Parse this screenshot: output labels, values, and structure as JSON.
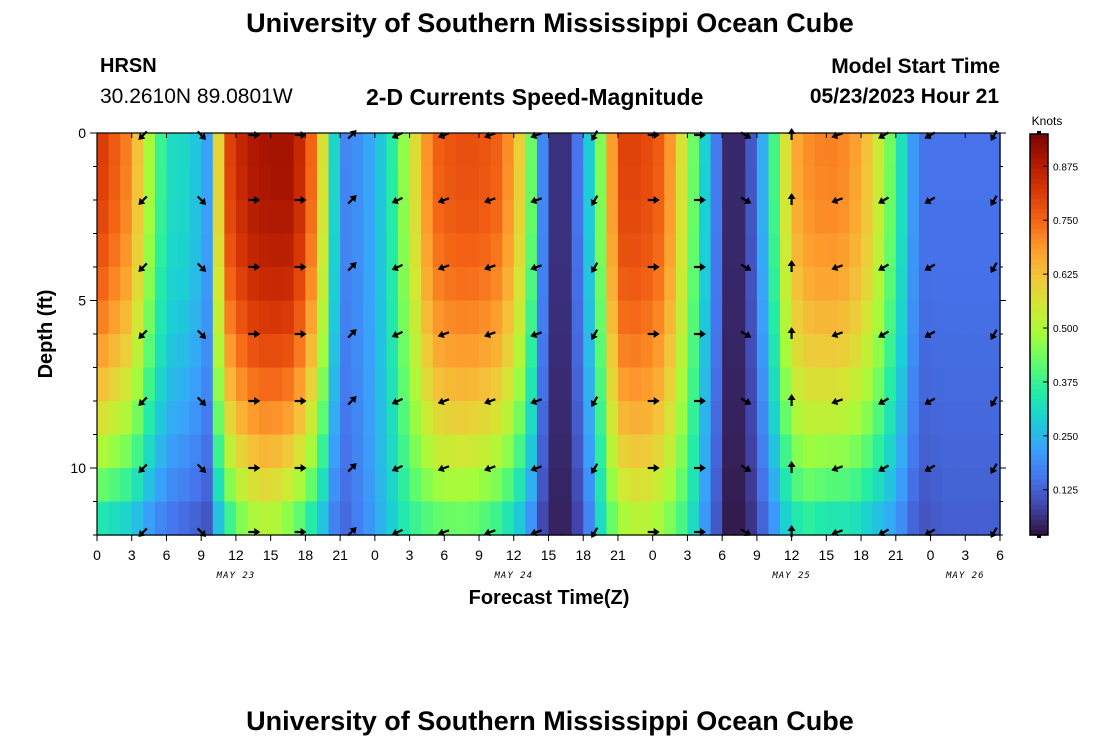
{
  "header": {
    "title": "University of Southern Mississippi Ocean Cube",
    "station_name": "HRSN",
    "station_coords": "30.2610N  89.0801W",
    "chart_title": "2-D Currents Speed-Magnitude",
    "model_start_label": "Model Start Time",
    "model_start_value": "05/23/2023 Hour 21"
  },
  "footer": {
    "title": "University of Southern Mississippi Ocean Cube"
  },
  "chart_data": {
    "type": "heatmap",
    "title": "2-D Currents Speed-Magnitude",
    "xlabel": "Forecast Time(Z)",
    "ylabel": "Depth (ft)",
    "x_range_hours": [
      0,
      78
    ],
    "ylim": [
      0,
      12
    ],
    "x_tick_labels": [
      "0",
      "3",
      "6",
      "9",
      "12",
      "15",
      "18",
      "21",
      "0",
      "3",
      "6",
      "9",
      "12",
      "15",
      "18",
      "21",
      "0",
      "3",
      "6",
      "9",
      "12",
      "15",
      "18",
      "21",
      "0",
      "3",
      "6"
    ],
    "y_tick_labels": [
      "0",
      "5",
      "10"
    ],
    "y_tick_values": [
      0,
      5,
      10
    ],
    "day_labels": [
      {
        "label": "MAY 23",
        "hour": 12
      },
      {
        "label": "MAY 24",
        "hour": 36
      },
      {
        "label": "MAY 25",
        "hour": 60
      },
      {
        "label": "MAY 26",
        "hour": 75
      }
    ],
    "colorbar": {
      "unit": "Knots",
      "min": 0.02,
      "max": 0.95,
      "tick_values": [
        0.125,
        0.25,
        0.375,
        0.5,
        0.625,
        0.75,
        0.875
      ],
      "tick_labels": [
        "0.125",
        "0.250",
        "0.375",
        "0.500",
        "0.625",
        "0.750",
        "0.875"
      ],
      "colors": [
        "#30123b",
        "#4145ab",
        "#4675ed",
        "#39a2fc",
        "#1bcfd4",
        "#24eca6",
        "#61fc6c",
        "#a4fc3b",
        "#d1e834",
        "#f3c63a",
        "#fe9b2d",
        "#f36315",
        "#d93806",
        "#b11901",
        "#7a0402"
      ]
    },
    "speed_profiles": {
      "time_hours": [
        0,
        3,
        4,
        6,
        8,
        9.5,
        11,
        13,
        15,
        17,
        19,
        21,
        23,
        25,
        27,
        29,
        31,
        33,
        35,
        37,
        39,
        40.5,
        42,
        43.5,
        45,
        47,
        49,
        51,
        53,
        54.5,
        56,
        58,
        60,
        61.5,
        63,
        65,
        67,
        69,
        71,
        73,
        75,
        77,
        78
      ],
      "surface_knots": [
        0.83,
        0.7,
        0.55,
        0.32,
        0.3,
        0.22,
        0.78,
        0.88,
        0.9,
        0.9,
        0.7,
        0.17,
        0.2,
        0.3,
        0.52,
        0.75,
        0.78,
        0.78,
        0.75,
        0.55,
        0.06,
        0.06,
        0.2,
        0.45,
        0.8,
        0.8,
        0.75,
        0.5,
        0.22,
        0.05,
        0.05,
        0.3,
        0.65,
        0.7,
        0.72,
        0.7,
        0.6,
        0.38,
        0.15,
        0.15,
        0.15,
        0.15,
        0.15
      ],
      "bottom_knots": [
        0.3,
        0.25,
        0.2,
        0.15,
        0.12,
        0.1,
        0.3,
        0.45,
        0.48,
        0.4,
        0.28,
        0.12,
        0.18,
        0.26,
        0.35,
        0.38,
        0.4,
        0.38,
        0.33,
        0.22,
        0.04,
        0.04,
        0.1,
        0.3,
        0.45,
        0.5,
        0.45,
        0.35,
        0.15,
        0.03,
        0.03,
        0.15,
        0.3,
        0.33,
        0.3,
        0.3,
        0.25,
        0.2,
        0.1,
        0.12,
        0.12,
        0.12,
        0.12
      ]
    },
    "vectors": {
      "depths_ft": [
        0,
        2,
        4,
        6,
        8,
        10,
        12
      ],
      "columns": [
        {
          "time_hours": 4,
          "angle_deg": 225
        },
        {
          "time_hours": 9,
          "angle_deg": 315
        },
        {
          "time_hours": 13.5,
          "angle_deg": 0
        },
        {
          "time_hours": 17.5,
          "angle_deg": 0
        },
        {
          "time_hours": 22,
          "angle_deg": 45
        },
        {
          "time_hours": 26,
          "angle_deg": 205
        },
        {
          "time_hours": 30,
          "angle_deg": 200
        },
        {
          "time_hours": 34,
          "angle_deg": 200
        },
        {
          "time_hours": 38,
          "angle_deg": 200
        },
        {
          "time_hours": 43,
          "angle_deg": 240
        },
        {
          "time_hours": 48,
          "angle_deg": 0
        },
        {
          "time_hours": 52,
          "angle_deg": 0
        },
        {
          "time_hours": 56,
          "angle_deg": 330
        },
        {
          "time_hours": 60,
          "angle_deg": 90
        },
        {
          "time_hours": 64,
          "angle_deg": 200
        },
        {
          "time_hours": 68,
          "angle_deg": 210
        },
        {
          "time_hours": 72,
          "angle_deg": 210
        },
        {
          "time_hours": 77.5,
          "angle_deg": 240
        }
      ]
    }
  }
}
